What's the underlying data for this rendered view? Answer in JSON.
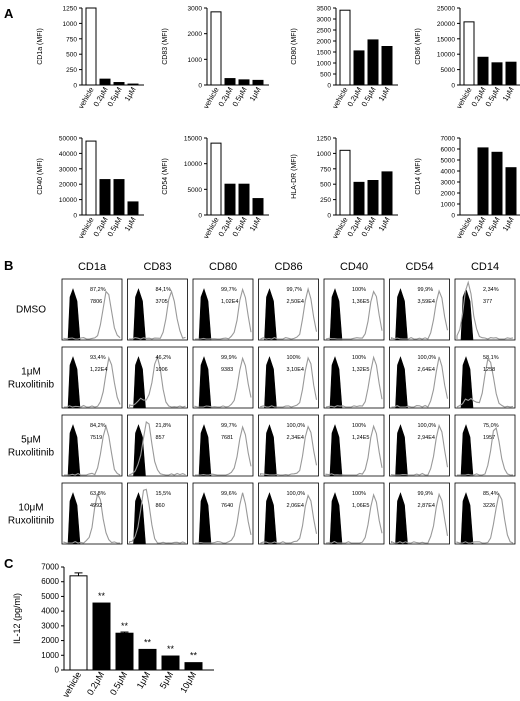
{
  "panels": {
    "a_label": "A",
    "b_label": "B",
    "c_label": "C"
  },
  "chart_data": [
    {
      "type": "bar",
      "panel": "A",
      "categories": [
        "vehicle",
        "0.2μM",
        "0.5μM",
        "1μM"
      ],
      "values": [
        1250,
        95,
        40,
        15
      ],
      "ylabel": "CD1a (MFI)",
      "ylim": [
        0,
        1250
      ],
      "yticks": [
        "0",
        "250",
        "500",
        "750",
        "1000",
        "1250"
      ]
    },
    {
      "type": "bar",
      "panel": "A",
      "categories": [
        "vehicle",
        "0.2μM",
        "0.5μM",
        "1μM"
      ],
      "values": [
        2850,
        250,
        200,
        180
      ],
      "ylabel": "CD83 (MFI)",
      "ylim": [
        0,
        3000
      ],
      "yticks": [
        "0",
        "1000",
        "2000",
        "3000"
      ]
    },
    {
      "type": "bar",
      "panel": "A",
      "categories": [
        "vehicle",
        "0.2μM",
        "0.5μM",
        "1μM"
      ],
      "values": [
        3400,
        1550,
        2050,
        1750
      ],
      "ylabel": "CD80 (MFI)",
      "ylim": [
        0,
        3500
      ],
      "yticks": [
        "0",
        "500",
        "1000",
        "1500",
        "2000",
        "2500",
        "3000",
        "3500"
      ]
    },
    {
      "type": "bar",
      "panel": "A",
      "categories": [
        "vehicle",
        "0.2μM",
        "0.5μM",
        "1μM"
      ],
      "values": [
        20500,
        9000,
        7200,
        7400
      ],
      "ylabel": "CD86 (MFI)",
      "ylim": [
        0,
        25000
      ],
      "yticks": [
        "0",
        "5000",
        "10000",
        "15000",
        "20000",
        "25000"
      ]
    },
    {
      "type": "bar",
      "panel": "A",
      "categories": [
        "vehicle",
        "0.2μM",
        "0.5μM",
        "1μM"
      ],
      "values": [
        48000,
        23000,
        23000,
        8500
      ],
      "ylabel": "CD40 (MFI)",
      "ylim": [
        0,
        50000
      ],
      "yticks": [
        "0",
        "10000",
        "20000",
        "30000",
        "40000",
        "50000"
      ]
    },
    {
      "type": "bar",
      "panel": "A",
      "categories": [
        "vehicle",
        "0.2μM",
        "0.5μM",
        "1μM"
      ],
      "values": [
        14000,
        6000,
        6000,
        3200
      ],
      "ylabel": "CD54 (MFI)",
      "ylim": [
        0,
        15000
      ],
      "yticks": [
        "0",
        "5000",
        "10000",
        "15000"
      ]
    },
    {
      "type": "bar",
      "panel": "A",
      "categories": [
        "vehicle",
        "0.2μM",
        "0.5μM",
        "1μM"
      ],
      "values": [
        1050,
        530,
        560,
        700
      ],
      "ylabel": "HLA-DR (MFI)",
      "ylim": [
        0,
        1250
      ],
      "yticks": [
        "0",
        "250",
        "500",
        "750",
        "1000",
        "1250"
      ]
    },
    {
      "type": "bar",
      "panel": "A",
      "categories": [
        "vehicle",
        "0.2μM",
        "0.5μM",
        "1μM"
      ],
      "values": [
        0,
        6100,
        5700,
        4300
      ],
      "ylabel": "CD14 (MFI)",
      "ylim": [
        0,
        7000
      ],
      "yticks": [
        "0",
        "1000",
        "2000",
        "3000",
        "4000",
        "5000",
        "6000",
        "7000"
      ]
    },
    {
      "type": "histogram-grid",
      "panel": "B",
      "columns": [
        "CD1a",
        "CD83",
        "CD80",
        "CD86",
        "CD40",
        "CD54",
        "CD14"
      ],
      "rows": [
        {
          "label": [
            "DMSO"
          ],
          "cells": [
            [
              "87,2%",
              "7806"
            ],
            [
              "84,1%",
              "3705"
            ],
            [
              "99,7%",
              "1,02E4"
            ],
            [
              "99,7%",
              "2,50E4"
            ],
            [
              "100%",
              "1,36E5"
            ],
            [
              "99,9%",
              "3,59E4"
            ],
            [
              "2,34%",
              "377"
            ]
          ]
        },
        {
          "label": [
            "1μM",
            "Ruxolitinib"
          ],
          "cells": [
            [
              "93,4%",
              "1,22E4"
            ],
            [
              "46,2%",
              "1006"
            ],
            [
              "99,9%",
              "9383"
            ],
            [
              "100%",
              "3,10E4"
            ],
            [
              "100%",
              "1,32E5"
            ],
            [
              "100,0%",
              "2,64E4"
            ],
            [
              "58,1%",
              "1258"
            ]
          ]
        },
        {
          "label": [
            "5μM",
            "Ruxolitinib"
          ],
          "cells": [
            [
              "84,2%",
              "7519"
            ],
            [
              "21,8%",
              "857"
            ],
            [
              "99,7%",
              "7681"
            ],
            [
              "100,0%",
              "2,34E4"
            ],
            [
              "100%",
              "1,24E5"
            ],
            [
              "100,0%",
              "2,94E4"
            ],
            [
              "75,0%",
              "1957"
            ]
          ]
        },
        {
          "label": [
            "10μM",
            "Ruxolitinib"
          ],
          "cells": [
            [
              "63,8%",
              "4992"
            ],
            [
              "15,5%",
              "860"
            ],
            [
              "99,6%",
              "7640"
            ],
            [
              "100,0%",
              "2,06E4"
            ],
            [
              "100%",
              "1,06E5"
            ],
            [
              "99,9%",
              "2,87E4"
            ],
            [
              "85,4%",
              "3226"
            ]
          ]
        }
      ]
    },
    {
      "type": "bar",
      "panel": "C",
      "categories": [
        "vehicle",
        "0.2μM",
        "0.5μM",
        "1μM",
        "5μM",
        "10μM"
      ],
      "values": [
        6400,
        4550,
        2500,
        1400,
        950,
        500
      ],
      "errors": [
        200,
        0,
        80,
        0,
        0,
        0
      ],
      "annotations": [
        "",
        "**",
        "**",
        "**",
        "**",
        "**"
      ],
      "ylabel": "IL-12 (pg/ml)",
      "ylim": [
        0,
        7000
      ],
      "yticks": [
        "0",
        "1000",
        "2000",
        "3000",
        "4000",
        "5000",
        "6000",
        "7000"
      ]
    }
  ]
}
